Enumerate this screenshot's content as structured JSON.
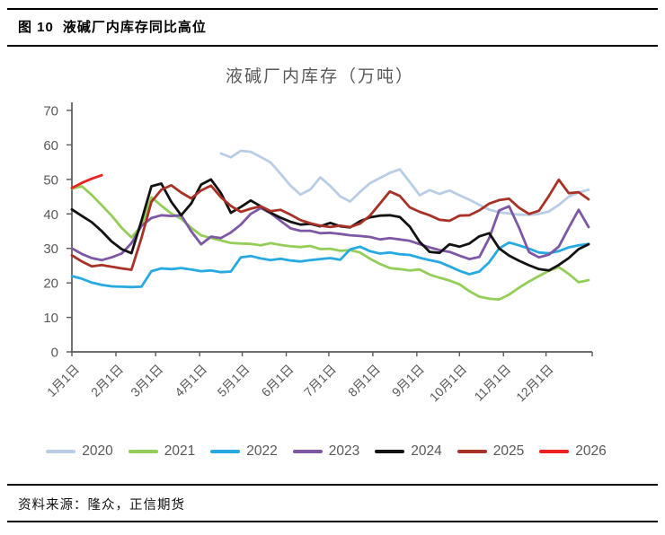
{
  "figure": {
    "label": "图 10",
    "caption": "液碱厂内库存同比高位"
  },
  "source": {
    "text": "资料来源：隆众，正信期货"
  },
  "chart_data": {
    "type": "line",
    "title": "液碱厂内库存（万吨）",
    "x_frequency": "weekly",
    "legend_position": "bottom",
    "grid": false,
    "axis_color": "#595959",
    "label_color": "#595959",
    "y_axis": {
      "min": 0,
      "max": 70,
      "tick_step": 10,
      "tick_labels": [
        "0",
        "10",
        "20",
        "30",
        "40",
        "50",
        "60",
        "70"
      ]
    },
    "x_axis": {
      "tick_labels": [
        "1月1日",
        "2月1日",
        "3月1日",
        "4月1日",
        "5月1日",
        "6月1日",
        "7月1日",
        "8月1日",
        "9月1日",
        "10月1日",
        "11月1日",
        "12月1日"
      ],
      "tick_day_offsets": [
        0,
        31,
        59,
        90,
        120,
        151,
        181,
        212,
        243,
        273,
        304,
        334
      ],
      "days_per_year": 364
    },
    "series": [
      {
        "name": "2020",
        "color": "#b9cde5",
        "values": [
          null,
          null,
          null,
          null,
          null,
          null,
          null,
          null,
          null,
          null,
          null,
          null,
          null,
          null,
          null,
          57.5,
          56.4,
          58.3,
          58.0,
          56.5,
          54.9,
          51.6,
          48.2,
          45.6,
          47.1,
          50.6,
          48.1,
          45.1,
          43.6,
          46.4,
          48.9,
          50.4,
          51.9,
          52.9,
          49.2,
          45.4,
          46.9,
          45.8,
          46.8,
          45.4,
          44.1,
          42.6,
          41.2,
          40.5,
          40.1,
          39.8,
          39.7,
          40.0,
          40.7,
          42.6,
          45.0,
          46.2,
          47.0
        ]
      },
      {
        "name": "2021",
        "color": "#94ce58",
        "values": [
          47.3,
          48.0,
          45.5,
          42.5,
          39.5,
          36.0,
          33.2,
          36.5,
          44.8,
          42.4,
          40.1,
          38.6,
          36.0,
          33.8,
          33.0,
          32.3,
          31.6,
          31.4,
          31.3,
          30.9,
          31.5,
          31.0,
          30.6,
          30.4,
          30.7,
          29.8,
          29.9,
          29.3,
          29.5,
          28.8,
          27.0,
          25.5,
          24.3,
          24.0,
          23.6,
          23.9,
          22.4,
          21.5,
          20.7,
          19.6,
          17.6,
          16.0,
          15.4,
          15.2,
          16.6,
          18.6,
          20.4,
          22.0,
          23.5,
          24.6,
          22.6,
          20.2,
          20.8
        ]
      },
      {
        "name": "2022",
        "color": "#27aae1",
        "values": [
          22.0,
          21.2,
          20.1,
          19.4,
          19.0,
          18.9,
          18.8,
          18.9,
          23.4,
          24.2,
          24.0,
          24.3,
          23.9,
          23.4,
          23.6,
          23.1,
          23.3,
          27.4,
          27.8,
          27.1,
          26.6,
          27.0,
          26.5,
          26.2,
          26.6,
          26.9,
          27.2,
          26.7,
          29.7,
          30.5,
          29.2,
          28.5,
          28.8,
          28.3,
          28.1,
          27.3,
          26.6,
          26.0,
          24.8,
          23.5,
          22.5,
          23.3,
          26.0,
          30.0,
          31.7,
          30.9,
          29.9,
          28.8,
          28.6,
          29.2,
          30.3,
          30.9,
          31.3
        ]
      },
      {
        "name": "2023",
        "color": "#7e57a5",
        "values": [
          30.0,
          28.4,
          27.2,
          26.6,
          27.4,
          28.5,
          31.5,
          36.5,
          38.8,
          39.6,
          39.4,
          39.6,
          35.0,
          31.2,
          33.4,
          33.0,
          34.6,
          36.9,
          40.0,
          41.7,
          40.2,
          38.0,
          35.8,
          35.1,
          35.1,
          34.4,
          34.5,
          34.2,
          33.8,
          33.6,
          33.3,
          32.6,
          33.0,
          32.6,
          32.2,
          31.2,
          30.3,
          29.5,
          29.0,
          27.9,
          26.9,
          27.5,
          33.0,
          41.0,
          42.2,
          36.0,
          28.9,
          27.4,
          28.2,
          30.5,
          36.0,
          41.2,
          36.2
        ]
      },
      {
        "name": "2024",
        "color": "#121212",
        "values": [
          41.3,
          39.4,
          37.6,
          35.0,
          32.0,
          29.8,
          28.6,
          38.0,
          48.0,
          48.8,
          43.5,
          39.6,
          43.0,
          48.5,
          50.0,
          46.0,
          40.3,
          42.0,
          43.9,
          42.2,
          40.3,
          38.9,
          37.7,
          36.9,
          37.1,
          36.4,
          37.4,
          36.4,
          36.1,
          37.9,
          39.0,
          39.5,
          39.6,
          39.1,
          36.3,
          31.9,
          29.0,
          28.7,
          31.2,
          30.5,
          31.4,
          33.5,
          34.4,
          30.0,
          27.9,
          26.4,
          25.1,
          24.0,
          23.6,
          25.2,
          27.2,
          29.8,
          31.2
        ]
      },
      {
        "name": "2025",
        "color": "#a93226",
        "values": [
          28.0,
          26.2,
          24.8,
          25.2,
          24.7,
          24.2,
          23.8,
          33.0,
          43.5,
          47.0,
          48.3,
          46.2,
          44.5,
          46.8,
          48.2,
          44.8,
          42.3,
          40.6,
          41.5,
          42.2,
          40.8,
          41.2,
          39.8,
          38.2,
          37.3,
          36.6,
          36.2,
          36.6,
          36.2,
          37.2,
          39.5,
          43.0,
          46.5,
          45.2,
          41.9,
          40.6,
          39.6,
          38.3,
          38.0,
          39.5,
          39.6,
          41.0,
          43.0,
          44.0,
          44.4,
          41.8,
          40.0,
          40.9,
          45.2,
          49.9,
          46.0,
          46.3,
          44.2
        ]
      },
      {
        "name": "2026",
        "color": "#ec2222",
        "values": [
          47.5,
          49.0,
          50.2,
          51.2
        ]
      }
    ]
  }
}
